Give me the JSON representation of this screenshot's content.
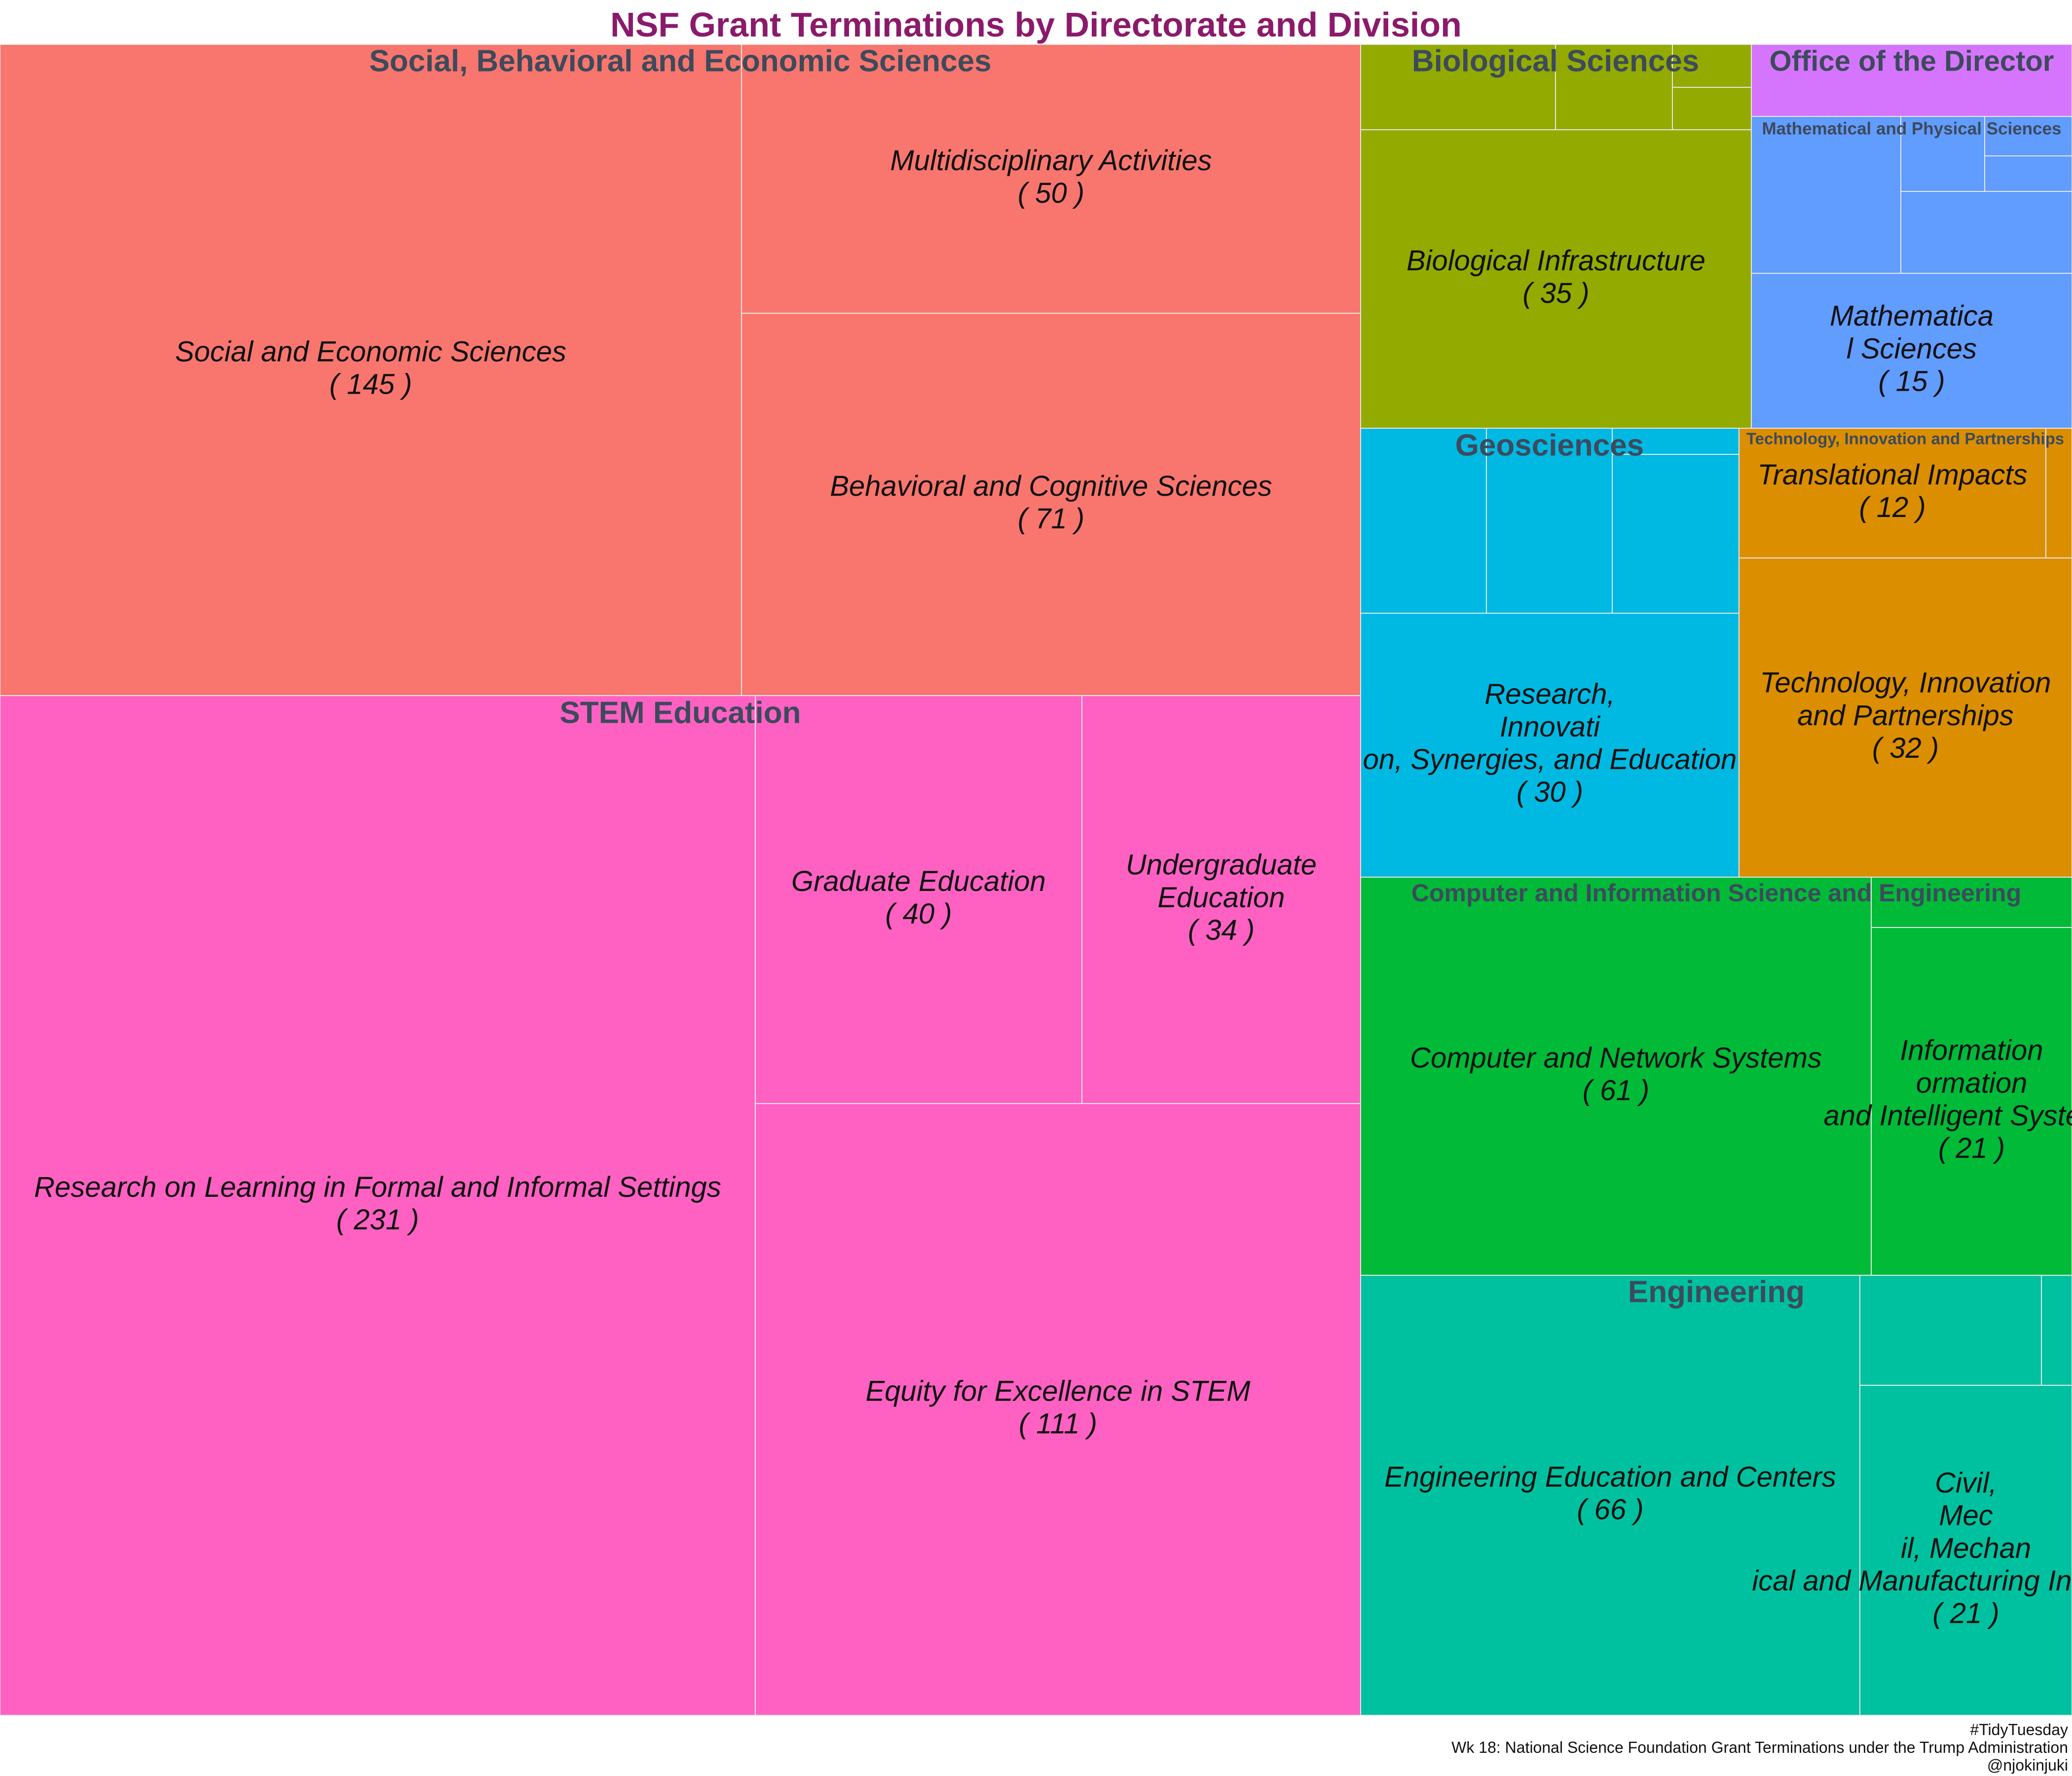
{
  "chart_data": {
    "type": "treemap",
    "title": "NSF Grant Terminations by Directorate and Division",
    "groups": [
      {
        "name": "Social, Behavioral and Economic Sciences",
        "color": "#F8766D",
        "children": [
          {
            "name": "Social and Economic Sciences",
            "value": 145
          },
          {
            "name": "Multidisciplinary Activities",
            "value": 50
          },
          {
            "name": "Behavioral and Cognitive Sciences",
            "value": 71
          }
        ]
      },
      {
        "name": "STEM Education",
        "color": "#FF61C3",
        "children": [
          {
            "name": "Research on Learning in Formal and Informal Settings",
            "value": 231
          },
          {
            "name": "Graduate Education",
            "value": 40
          },
          {
            "name": "Undergraduate Education",
            "value": 34
          },
          {
            "name": "Equity for Excellence in STEM",
            "value": 111
          }
        ]
      },
      {
        "name": "Biological Sciences",
        "color": "#93AA00",
        "children": [
          {
            "name": "Biological Infrastructure",
            "value": 35
          }
        ]
      },
      {
        "name": "Office of the Director",
        "color": "#D575FE",
        "children": []
      },
      {
        "name": "Mathematical and Physical Sciences",
        "color": "#619CFF",
        "children": [
          {
            "name": "Mathematical Sciences",
            "value": 15
          }
        ]
      },
      {
        "name": "Geosciences",
        "color": "#00B9E3",
        "children": [
          {
            "name": "Research, Innovation, Synergies, and Education",
            "value": 30
          }
        ]
      },
      {
        "name": "Technology, Innovation and Partnerships",
        "color": "#DB8E00",
        "children": [
          {
            "name": "Translational Impacts",
            "value": 12
          },
          {
            "name": "Technology, Innovation and Partnerships",
            "value": 32
          }
        ]
      },
      {
        "name": "Computer and Information Science and Engineering",
        "color": "#00BA38",
        "children": [
          {
            "name": "Computer and Network Systems",
            "value": 61
          },
          {
            "name": "Information and Intelligent Systems",
            "value": 21
          }
        ]
      },
      {
        "name": "Engineering",
        "color": "#00C19F",
        "children": [
          {
            "name": "Engineering Education and Centers",
            "value": 66
          },
          {
            "name": "Civil, Mechanical and Manufacturing Innovation",
            "value": 21
          }
        ]
      }
    ],
    "title_color": "#8B1A6B",
    "group_label_color": "#3D4A5C",
    "tile_label_color": "#111111",
    "border_color": "#E8E8E8"
  },
  "caption": {
    "line1": "#TidyTuesday",
    "line2": "Wk 18: National Science Foundation Grant Terminations under the Trump Administration",
    "line3": "@njokinjuki"
  }
}
